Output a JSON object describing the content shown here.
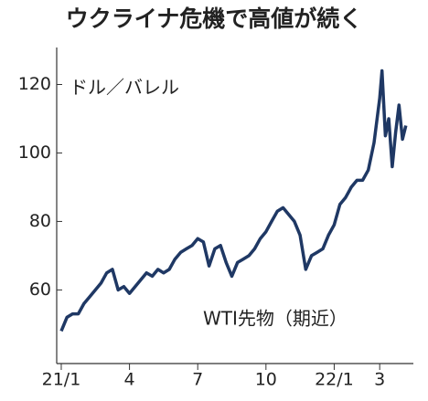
{
  "chart_data": {
    "type": "line",
    "title": "ウクライナ危機で高値が続く",
    "y_axis_label": "ドル／バレル",
    "annotation": "WTI先物（期近）",
    "x": [
      0,
      0.25,
      0.5,
      0.75,
      1,
      1.25,
      1.5,
      1.75,
      2,
      2.25,
      2.5,
      2.75,
      3,
      3.25,
      3.5,
      3.75,
      4,
      4.25,
      4.5,
      4.75,
      5,
      5.25,
      5.5,
      5.75,
      6,
      6.25,
      6.5,
      6.75,
      7,
      7.25,
      7.5,
      7.75,
      8,
      8.25,
      8.5,
      8.75,
      9,
      9.25,
      9.5,
      9.75,
      10,
      10.25,
      10.5,
      10.75,
      11,
      11.25,
      11.5,
      11.75,
      12,
      12.25,
      12.5,
      12.75,
      13,
      13.25,
      13.5,
      13.75,
      14,
      14.1,
      14.25,
      14.4,
      14.55,
      14.7,
      14.85,
      15,
      15.15
    ],
    "series": [
      {
        "name": "WTI先物（期近）",
        "color": "#1f3864",
        "values": [
          48,
          52,
          53,
          53,
          56,
          58,
          60,
          62,
          65,
          66,
          60,
          61,
          59,
          61,
          63,
          65,
          64,
          66,
          65,
          66,
          69,
          71,
          72,
          73,
          75,
          74,
          67,
          72,
          73,
          68,
          64,
          68,
          69,
          70,
          72,
          75,
          77,
          80,
          83,
          84,
          82,
          80,
          76,
          66,
          70,
          71,
          72,
          76,
          79,
          85,
          87,
          90,
          92,
          92,
          95,
          103,
          116,
          124,
          105,
          110,
          96,
          106,
          114,
          104,
          108
        ]
      }
    ],
    "xlim": [
      -0.2,
      15.4
    ],
    "xticks": [
      {
        "value": 0,
        "label": "21/1"
      },
      {
        "value": 3,
        "label": "4"
      },
      {
        "value": 6,
        "label": "7"
      },
      {
        "value": 9,
        "label": "10"
      },
      {
        "value": 12,
        "label": "22/1"
      },
      {
        "value": 14,
        "label": "3"
      }
    ],
    "ylim": [
      38.5,
      130
    ],
    "yticks": [
      60,
      80,
      100,
      120
    ],
    "grid": false
  }
}
